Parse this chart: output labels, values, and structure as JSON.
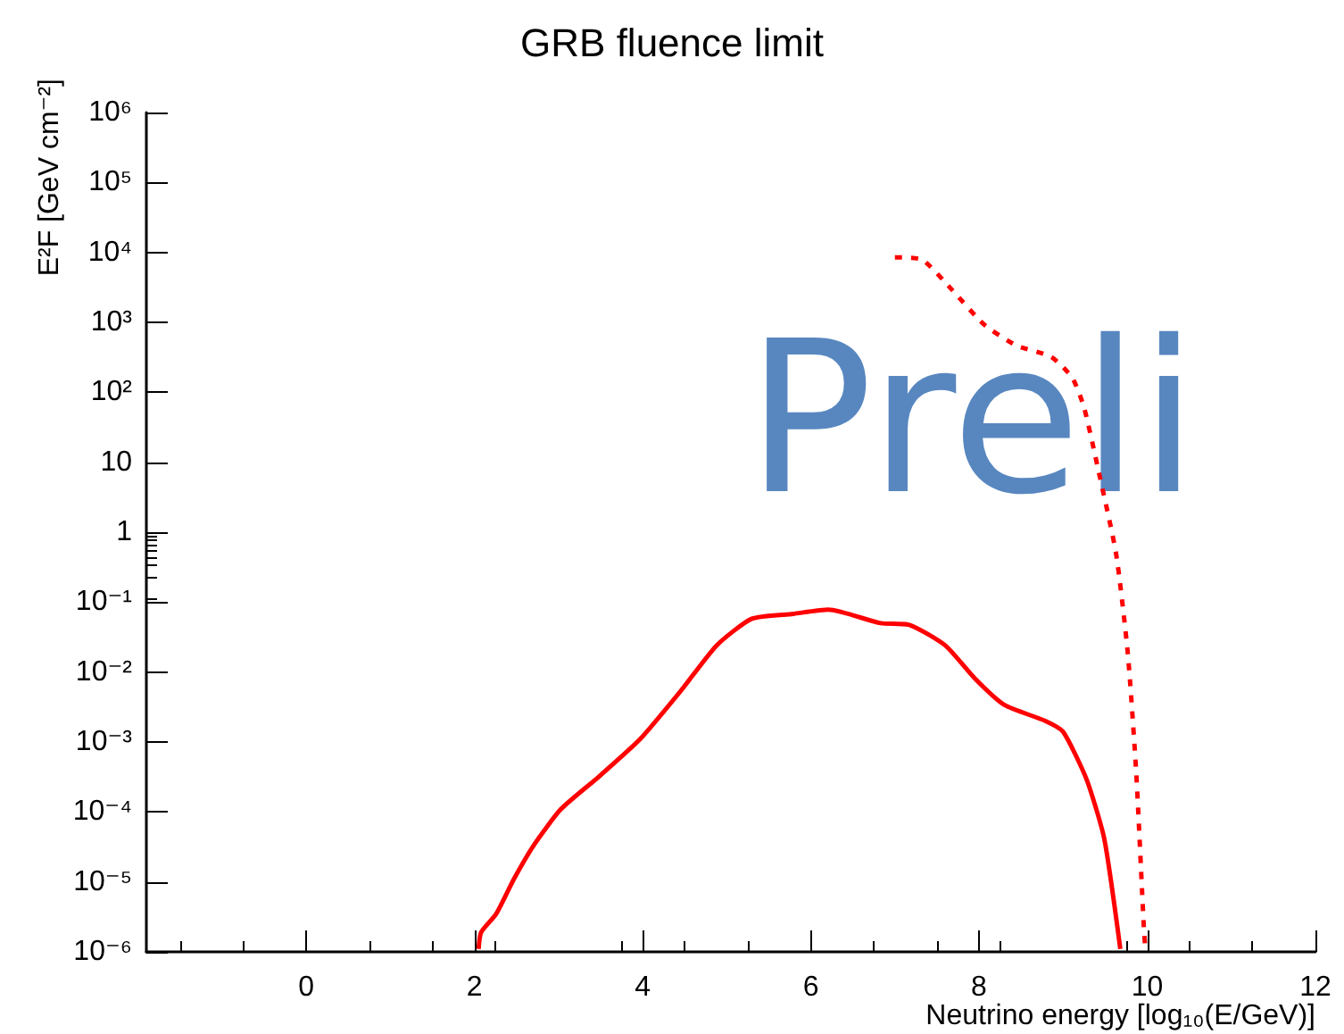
{
  "chart_data": {
    "type": "line",
    "title": "GRB fluence limit",
    "xlabel": "Neutrino energy [log₁₀(E/GeV)]",
    "ylabel": "E²F [GeV cm⁻²]",
    "annotations": [
      "Preli"
    ],
    "log": "y",
    "xlim": [
      -1.9,
      12
    ],
    "xticks": [
      0,
      2,
      4,
      6,
      8,
      10,
      12
    ],
    "ylim": [
      1e-06,
      1000000.0
    ],
    "yticks": [
      {
        "value": 1e-06,
        "label": "10⁻⁶"
      },
      {
        "value": 1e-05,
        "label": "10⁻⁵"
      },
      {
        "value": 0.0001,
        "label": "10⁻⁴"
      },
      {
        "value": 0.001,
        "label": "10⁻³"
      },
      {
        "value": 0.01,
        "label": "10⁻²"
      },
      {
        "value": 0.1,
        "label": "10⁻¹"
      },
      1,
      10,
      {
        "value": 100,
        "label": "10²"
      },
      {
        "value": 1000,
        "label": "10³"
      },
      {
        "value": 10000,
        "label": "10⁴"
      },
      {
        "value": 100000,
        "label": "10⁵"
      },
      {
        "value": 1000000,
        "label": "10⁶"
      }
    ],
    "series": [
      {
        "color": "#ff0000",
        "line_style": "solid",
        "x": [
          2.05,
          2.08,
          2.26,
          2.47,
          2.71,
          3.03,
          3.48,
          3.97,
          4.46,
          4.88,
          5.3,
          5.79,
          6.21,
          6.83,
          7.18,
          7.6,
          7.95,
          8.3,
          8.79,
          9.0,
          9.28,
          9.49,
          9.68
        ],
        "values": [
          1.1e-06,
          1.9e-06,
          3.5e-06,
          1.1e-05,
          3.4e-05,
          0.00011,
          0.00032,
          0.0011,
          0.0055,
          0.024,
          0.058,
          0.068,
          0.078,
          0.05,
          0.047,
          0.024,
          0.0081,
          0.0034,
          0.002,
          0.0014,
          0.00029,
          4.1e-05,
          1.1e-06
        ]
      },
      {
        "color": "#ff0000",
        "line_style": "dotted",
        "x": [
          7.0,
          7.32,
          7.67,
          8.06,
          8.44,
          8.86,
          9.11,
          9.25,
          9.42,
          9.63,
          9.77,
          9.87,
          9.96,
          9.98
        ],
        "values": [
          8500,
          7900,
          3000,
          930,
          470,
          320,
          160,
          60,
          7.6,
          0.49,
          0.018,
          0.00035,
          2.2e-06,
          1e-06
        ]
      }
    ]
  }
}
